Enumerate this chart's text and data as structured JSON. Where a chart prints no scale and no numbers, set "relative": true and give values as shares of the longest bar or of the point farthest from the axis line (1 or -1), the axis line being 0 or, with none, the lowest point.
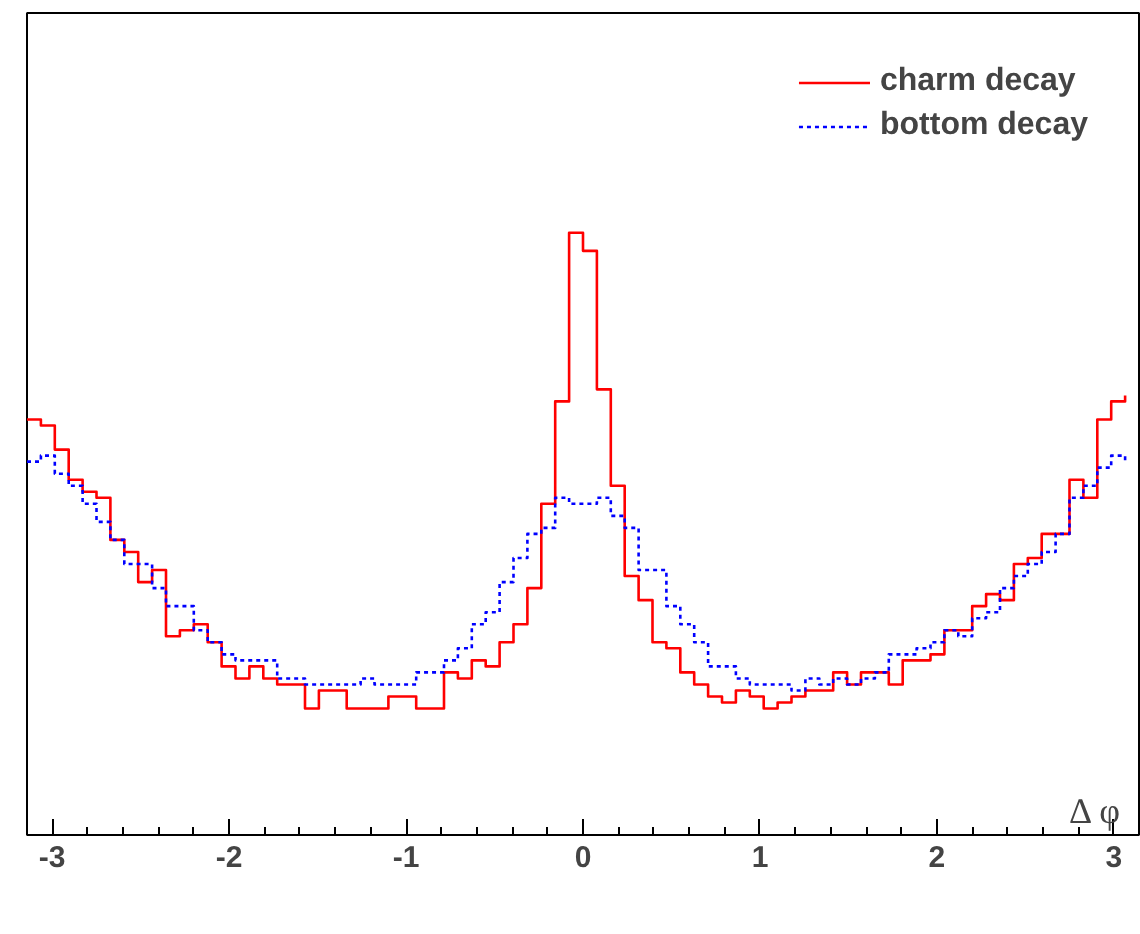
{
  "chart_data": {
    "type": "step",
    "relative": true,
    "xlabel": "Δ φ",
    "xlim": [
      -3.1416,
      3.1416
    ],
    "xticks": [
      {
        "value": -3,
        "label": "-3"
      },
      {
        "value": -2,
        "label": "-2"
      },
      {
        "value": -1,
        "label": "-1"
      },
      {
        "value": 0,
        "label": "0"
      },
      {
        "value": 1,
        "label": "1"
      },
      {
        "value": 2,
        "label": "2"
      },
      {
        "value": 3,
        "label": "3"
      }
    ],
    "x": [
      -3.1416,
      -3.0631,
      -2.9845,
      -2.906,
      -2.8274,
      -2.7489,
      -2.6704,
      -2.5918,
      -2.5133,
      -2.4347,
      -2.3562,
      -2.2777,
      -2.1991,
      -2.1206,
      -2.042,
      -1.9635,
      -1.885,
      -1.8064,
      -1.7279,
      -1.6493,
      -1.5708,
      -1.4923,
      -1.4137,
      -1.3352,
      -1.2566,
      -1.1781,
      -1.0996,
      -1.021,
      -0.9425,
      -0.8639,
      -0.7854,
      -0.7069,
      -0.6283,
      -0.5498,
      -0.4712,
      -0.3927,
      -0.3142,
      -0.2356,
      -0.1571,
      -0.0785,
      0,
      0.0785,
      0.1571,
      0.2356,
      0.3142,
      0.3927,
      0.4712,
      0.5498,
      0.6283,
      0.7069,
      0.7854,
      0.8639,
      0.9425,
      1.021,
      1.0996,
      1.1781,
      1.2566,
      1.3352,
      1.4137,
      1.4923,
      1.5708,
      1.6493,
      1.7279,
      1.8064,
      1.885,
      1.9635,
      2.042,
      2.1206,
      2.1991,
      2.2777,
      2.3562,
      2.4347,
      2.5133,
      2.5918,
      2.6704,
      2.7489,
      2.8274,
      2.906,
      2.9845,
      3.0631
    ],
    "series": [
      {
        "name": "charm decay",
        "color": "#ff0000",
        "line_style": "solid",
        "values": [
          0.69,
          0.68,
          0.64,
          0.59,
          0.57,
          0.56,
          0.49,
          0.47,
          0.42,
          0.44,
          0.33,
          0.34,
          0.35,
          0.32,
          0.28,
          0.26,
          0.28,
          0.26,
          0.25,
          0.25,
          0.21,
          0.24,
          0.24,
          0.21,
          0.21,
          0.21,
          0.23,
          0.23,
          0.21,
          0.21,
          0.27,
          0.26,
          0.29,
          0.28,
          0.32,
          0.35,
          0.41,
          0.55,
          0.72,
          1,
          0.97,
          0.74,
          0.58,
          0.43,
          0.39,
          0.32,
          0.31,
          0.27,
          0.25,
          0.23,
          0.22,
          0.24,
          0.23,
          0.21,
          0.22,
          0.23,
          0.24,
          0.24,
          0.27,
          0.25,
          0.27,
          0.27,
          0.25,
          0.29,
          0.29,
          0.3,
          0.34,
          0.34,
          0.38,
          0.4,
          0.39,
          0.45,
          0.46,
          0.5,
          0.5,
          0.59,
          0.56,
          0.69,
          0.72,
          0.73
        ]
      },
      {
        "name": "bottom decay",
        "color": "#0000ff",
        "line_style": "dotted",
        "values": [
          0.62,
          0.63,
          0.6,
          0.58,
          0.55,
          0.52,
          0.49,
          0.45,
          0.45,
          0.41,
          0.38,
          0.38,
          0.34,
          0.32,
          0.3,
          0.29,
          0.29,
          0.29,
          0.26,
          0.26,
          0.25,
          0.25,
          0.25,
          0.25,
          0.26,
          0.25,
          0.25,
          0.25,
          0.27,
          0.27,
          0.29,
          0.31,
          0.35,
          0.37,
          0.42,
          0.46,
          0.5,
          0.51,
          0.56,
          0.55,
          0.55,
          0.56,
          0.53,
          0.51,
          0.44,
          0.44,
          0.38,
          0.35,
          0.32,
          0.28,
          0.28,
          0.26,
          0.25,
          0.25,
          0.25,
          0.24,
          0.26,
          0.25,
          0.26,
          0.25,
          0.26,
          0.27,
          0.3,
          0.3,
          0.31,
          0.32,
          0.34,
          0.33,
          0.36,
          0.37,
          0.41,
          0.43,
          0.45,
          0.47,
          0.5,
          0.56,
          0.58,
          0.61,
          0.63,
          0.62
        ]
      }
    ],
    "legend": "top right"
  }
}
